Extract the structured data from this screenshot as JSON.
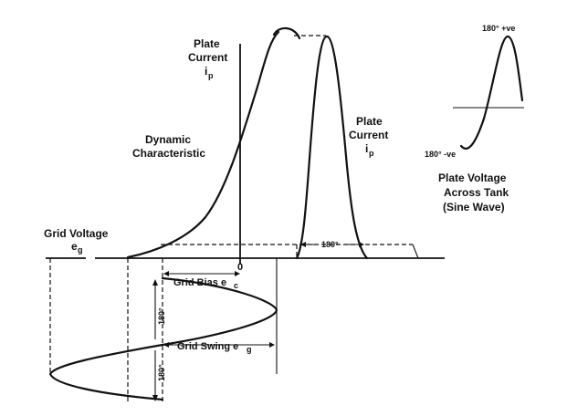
{
  "labels": {
    "plate_current_top": [
      "Plate",
      "Current"
    ],
    "plate_current_top_symbol": "i",
    "plate_current_top_sub": "p",
    "plate_current_right": [
      "Plate",
      "Current"
    ],
    "plate_current_right_symbol": "i",
    "plate_current_right_sub": "p",
    "dynamic_characteristic": [
      "Dynamic",
      "Characteristic"
    ],
    "grid_voltage": "Grid Voltage",
    "grid_voltage_symbol": "e",
    "grid_voltage_sub": "g",
    "zero": "0",
    "grid_bias": "Grid Bias e",
    "grid_bias_sub": "c",
    "grid_swing": "Grid Swing e",
    "grid_swing_sub": "g",
    "angle_180_upper": "180°",
    "angle_180_lower": "180°",
    "angle_180_conduction": "180°",
    "sine_pos": "180° +ve",
    "sine_neg": "180° -ve",
    "plate_voltage_caption": [
      "Plate Voltage",
      "Across Tank",
      "(Sine Wave)"
    ]
  }
}
